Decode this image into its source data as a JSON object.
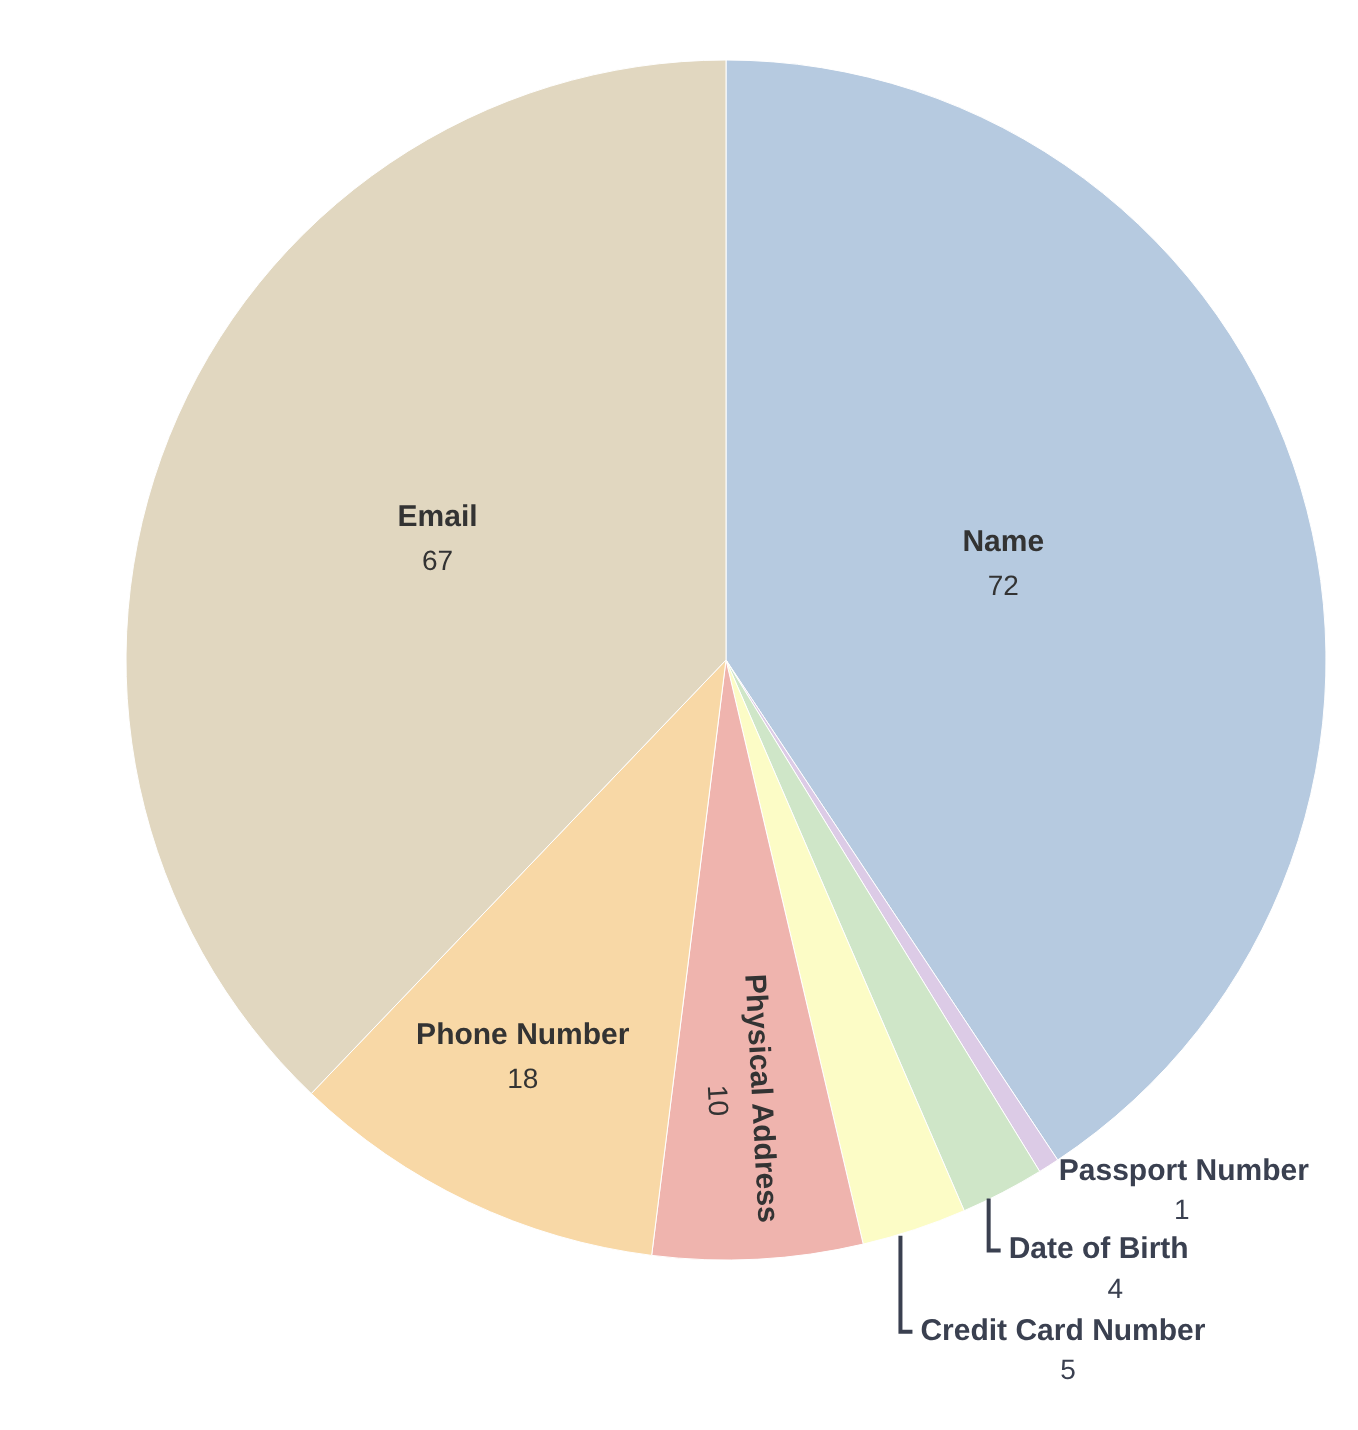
{
  "chart_data": {
    "type": "pie",
    "categories": [
      "Name",
      "Passport Number",
      "Date of Birth",
      "Credit Card Number",
      "Physical Address",
      "Phone Number",
      "Email"
    ],
    "values": [
      72,
      1,
      4,
      5,
      10,
      18,
      67
    ],
    "colors": [
      "#b6cae0",
      "#dccbe6",
      "#cfe6c8",
      "#fcfcc6",
      "#efb4ae",
      "#f8d8a6",
      "#e1d7c0"
    ],
    "data_labels": true
  }
}
